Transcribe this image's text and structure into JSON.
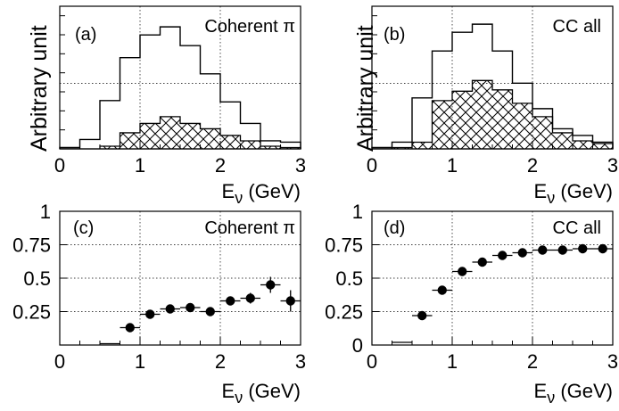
{
  "figure": {
    "xlabel_main": "E",
    "xlabel_sub": "ν",
    "xlabel_unit": " (GeV)"
  },
  "chart_data": [
    {
      "type": "bar",
      "panel_label": "(a)",
      "title": "Coherent π",
      "ylabel": "Arbitrary unit",
      "xlim": [
        0,
        3
      ],
      "xticks": [
        0,
        1,
        2,
        3
      ],
      "grid": true,
      "bin_edges": [
        0.0,
        0.25,
        0.5,
        0.75,
        1.0,
        1.25,
        1.5,
        1.75,
        2.0,
        2.25,
        2.5,
        2.75,
        3.0
      ],
      "series": [
        {
          "style": "outline",
          "values": [
            0.01,
            0.07,
            0.36,
            0.68,
            0.85,
            0.91,
            0.77,
            0.56,
            0.35,
            0.19,
            0.06,
            0.05
          ]
        },
        {
          "style": "hatched",
          "values": [
            0.0,
            0.0,
            0.02,
            0.12,
            0.19,
            0.24,
            0.19,
            0.15,
            0.1,
            0.06,
            0.02,
            0.01
          ]
        }
      ],
      "ylim": [
        0,
        1
      ]
    },
    {
      "type": "bar",
      "panel_label": "(b)",
      "title": "CC all",
      "ylabel": "Arbitrary unit",
      "xlim": [
        0,
        3
      ],
      "xticks": [
        0,
        1,
        2,
        3
      ],
      "grid": true,
      "bin_edges": [
        0.0,
        0.25,
        0.5,
        0.75,
        1.0,
        1.25,
        1.5,
        1.75,
        2.0,
        2.25,
        2.5,
        2.75,
        3.0
      ],
      "series": [
        {
          "style": "outline",
          "values": [
            0.01,
            0.05,
            0.38,
            0.73,
            0.87,
            0.93,
            0.73,
            0.49,
            0.3,
            0.15,
            0.1,
            0.05
          ]
        },
        {
          "style": "hatched",
          "values": [
            0.0,
            0.01,
            0.05,
            0.36,
            0.43,
            0.51,
            0.44,
            0.34,
            0.24,
            0.12,
            0.06,
            0.04
          ]
        }
      ],
      "ylim": [
        0,
        1
      ]
    },
    {
      "type": "scatter",
      "panel_label": "(c)",
      "title": "Coherent π",
      "xlim": [
        0,
        3
      ],
      "ylim": [
        0,
        1
      ],
      "xticks": [
        0,
        1,
        2,
        3
      ],
      "yticks": [
        "0.25",
        "0.5",
        "0.75",
        "1"
      ],
      "ytick_values": [
        0.25,
        0.5,
        0.75,
        1
      ],
      "grid": true,
      "points": [
        {
          "x": 0.625,
          "y": 0.01,
          "xerr": 0.125,
          "yerr": 0.0
        },
        {
          "x": 0.875,
          "y": 0.13,
          "xerr": 0.125,
          "yerr": 0.0
        },
        {
          "x": 1.125,
          "y": 0.23,
          "xerr": 0.125,
          "yerr": 0.0
        },
        {
          "x": 1.375,
          "y": 0.27,
          "xerr": 0.125,
          "yerr": 0.0
        },
        {
          "x": 1.625,
          "y": 0.28,
          "xerr": 0.125,
          "yerr": 0.0
        },
        {
          "x": 1.875,
          "y": 0.25,
          "xerr": 0.125,
          "yerr": 0.0
        },
        {
          "x": 2.125,
          "y": 0.33,
          "xerr": 0.125,
          "yerr": 0.02
        },
        {
          "x": 2.375,
          "y": 0.35,
          "xerr": 0.125,
          "yerr": 0.04
        },
        {
          "x": 2.625,
          "y": 0.45,
          "xerr": 0.125,
          "yerr": 0.06
        },
        {
          "x": 2.875,
          "y": 0.33,
          "xerr": 0.125,
          "yerr": 0.08
        }
      ]
    },
    {
      "type": "scatter",
      "panel_label": "(d)",
      "title": "CC all",
      "xlim": [
        0,
        3
      ],
      "ylim": [
        0,
        1
      ],
      "xticks": [
        0,
        1,
        2,
        3
      ],
      "yticks": [
        "0",
        "0.25",
        "0.5",
        "0.75",
        "1"
      ],
      "ytick_values": [
        0,
        0.25,
        0.5,
        0.75,
        1
      ],
      "grid": true,
      "points": [
        {
          "x": 0.375,
          "y": 0.02,
          "xerr": 0.125,
          "yerr": 0.0
        },
        {
          "x": 0.625,
          "y": 0.22,
          "xerr": 0.125,
          "yerr": 0.0
        },
        {
          "x": 0.875,
          "y": 0.41,
          "xerr": 0.125,
          "yerr": 0.0
        },
        {
          "x": 1.125,
          "y": 0.55,
          "xerr": 0.125,
          "yerr": 0.0
        },
        {
          "x": 1.375,
          "y": 0.62,
          "xerr": 0.125,
          "yerr": 0.0
        },
        {
          "x": 1.625,
          "y": 0.67,
          "xerr": 0.125,
          "yerr": 0.0
        },
        {
          "x": 1.875,
          "y": 0.69,
          "xerr": 0.125,
          "yerr": 0.0
        },
        {
          "x": 2.125,
          "y": 0.71,
          "xerr": 0.125,
          "yerr": 0.0
        },
        {
          "x": 2.375,
          "y": 0.71,
          "xerr": 0.125,
          "yerr": 0.0
        },
        {
          "x": 2.625,
          "y": 0.72,
          "xerr": 0.125,
          "yerr": 0.0
        },
        {
          "x": 2.875,
          "y": 0.72,
          "xerr": 0.125,
          "yerr": 0.0
        }
      ]
    }
  ]
}
